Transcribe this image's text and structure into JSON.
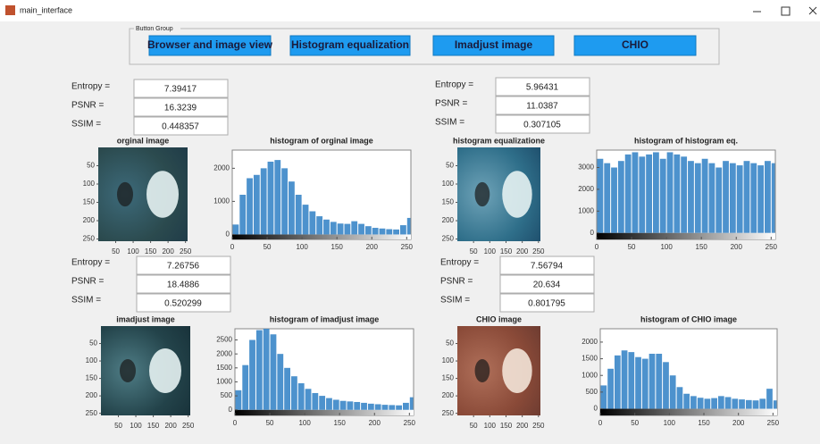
{
  "window_title": "main_interface",
  "button_group": {
    "label": "Button Group",
    "buttons": [
      "Browser and image view",
      "Histogram equalization",
      "Imadjust image",
      "CHIO"
    ]
  },
  "panels": [
    {
      "metrics": [
        {
          "label": "Entropy =",
          "value": 7.39417
        },
        {
          "label": "PSNR =",
          "value": 16.3239
        },
        {
          "label": "SSIM =",
          "value": 0.448357
        }
      ],
      "image": {
        "title": "orginal image",
        "xlim": [
          0,
          256
        ],
        "ylim": [
          0,
          256
        ],
        "xticks": [
          50,
          100,
          150,
          200,
          250
        ],
        "yticks": [
          50,
          100,
          150,
          200,
          250
        ]
      },
      "histogram": {
        "type": "bar",
        "title": "histogram of orginal image",
        "color": "#3a86c8",
        "xlim": [
          0,
          256
        ],
        "ylim": [
          -150,
          2550
        ],
        "xticks": [
          0,
          50,
          100,
          150,
          200,
          250
        ],
        "yticks": [
          0,
          1000,
          2000
        ],
        "bins": [
          0,
          10,
          20,
          30,
          40,
          50,
          60,
          70,
          80,
          90,
          100,
          110,
          120,
          130,
          140,
          150,
          160,
          170,
          180,
          190,
          200,
          210,
          220,
          230,
          240,
          250,
          256
        ],
        "values": [
          300,
          1200,
          1700,
          1800,
          2000,
          2200,
          2250,
          2000,
          1600,
          1200,
          900,
          700,
          550,
          450,
          380,
          330,
          320,
          400,
          320,
          250,
          200,
          180,
          160,
          150,
          280,
          500
        ]
      }
    },
    {
      "metrics": [
        {
          "label": "Entropy =",
          "value": 5.96431
        },
        {
          "label": "PSNR =",
          "value": 11.0387
        },
        {
          "label": "SSIM =",
          "value": 0.307105
        }
      ],
      "image": {
        "title": "histogram equalizatione",
        "xlim": [
          0,
          256
        ],
        "ylim": [
          0,
          256
        ],
        "xticks": [
          50,
          100,
          150,
          200,
          250
        ],
        "yticks": [
          50,
          100,
          150,
          200,
          250
        ]
      },
      "histogram": {
        "type": "bar",
        "title": "histogram of histogram eq.",
        "color": "#3a86c8",
        "xlim": [
          0,
          256
        ],
        "ylim": [
          -300,
          3800
        ],
        "xticks": [
          0,
          50,
          100,
          150,
          200,
          250
        ],
        "yticks": [
          0,
          1000,
          2000,
          3000
        ],
        "bins": [
          0,
          10,
          20,
          30,
          40,
          50,
          60,
          70,
          80,
          90,
          100,
          110,
          120,
          130,
          140,
          150,
          160,
          170,
          180,
          190,
          200,
          210,
          220,
          230,
          240,
          250,
          256
        ],
        "values": [
          3400,
          3200,
          3000,
          3300,
          3600,
          3700,
          3500,
          3600,
          3700,
          3400,
          3700,
          3600,
          3500,
          3300,
          3200,
          3400,
          3200,
          3000,
          3300,
          3200,
          3100,
          3300,
          3200,
          3100,
          3300,
          3200
        ]
      }
    },
    {
      "metrics": [
        {
          "label": "Entropy =",
          "value": 7.26756
        },
        {
          "label": "PSNR =",
          "value": 18.4886
        },
        {
          "label": "SSIM =",
          "value": 0.520299
        }
      ],
      "image": {
        "title": "imadjust image",
        "xlim": [
          0,
          256
        ],
        "ylim": [
          0,
          256
        ],
        "xticks": [
          50,
          100,
          150,
          200,
          250
        ],
        "yticks": [
          50,
          100,
          150,
          200,
          250
        ]
      },
      "histogram": {
        "type": "bar",
        "title": "histogram of imadjust image",
        "color": "#3a86c8",
        "xlim": [
          0,
          256
        ],
        "ylim": [
          -200,
          2900
        ],
        "xticks": [
          0,
          50,
          100,
          150,
          200,
          250
        ],
        "yticks": [
          0,
          500,
          1000,
          1500,
          2000,
          2500
        ],
        "bins": [
          0,
          10,
          20,
          30,
          40,
          50,
          60,
          70,
          80,
          90,
          100,
          110,
          120,
          130,
          140,
          150,
          160,
          170,
          180,
          190,
          200,
          210,
          220,
          230,
          240,
          250,
          256
        ],
        "values": [
          700,
          1600,
          2500,
          2850,
          2900,
          2700,
          2000,
          1500,
          1200,
          950,
          750,
          600,
          500,
          420,
          360,
          320,
          300,
          280,
          250,
          220,
          200,
          180,
          170,
          160,
          250,
          450
        ]
      }
    },
    {
      "metrics": [
        {
          "label": "Entropy =",
          "value": 7.56794
        },
        {
          "label": "PSNR =",
          "value": 20.634
        },
        {
          "label": "SSIM =",
          "value": 0.801795
        }
      ],
      "image": {
        "title": "CHIO image",
        "xlim": [
          0,
          256
        ],
        "ylim": [
          0,
          256
        ],
        "xticks": [
          50,
          100,
          150,
          200,
          250
        ],
        "yticks": [
          50,
          100,
          150,
          200,
          250
        ]
      },
      "histogram": {
        "type": "bar",
        "title": "histogram of CHIO image",
        "color": "#3a86c8",
        "xlim": [
          0,
          256
        ],
        "ylim": [
          -200,
          2400
        ],
        "xticks": [
          0,
          50,
          100,
          150,
          200,
          250
        ],
        "yticks": [
          0,
          500,
          1000,
          1500,
          2000
        ],
        "bins": [
          0,
          10,
          20,
          30,
          40,
          50,
          60,
          70,
          80,
          90,
          100,
          110,
          120,
          130,
          140,
          150,
          160,
          170,
          180,
          190,
          200,
          210,
          220,
          230,
          240,
          250,
          256
        ],
        "values": [
          700,
          1200,
          1600,
          1750,
          1700,
          1550,
          1500,
          1650,
          1650,
          1400,
          1000,
          650,
          450,
          380,
          330,
          300,
          320,
          380,
          350,
          300,
          280,
          260,
          250,
          300,
          600,
          250
        ]
      }
    }
  ]
}
